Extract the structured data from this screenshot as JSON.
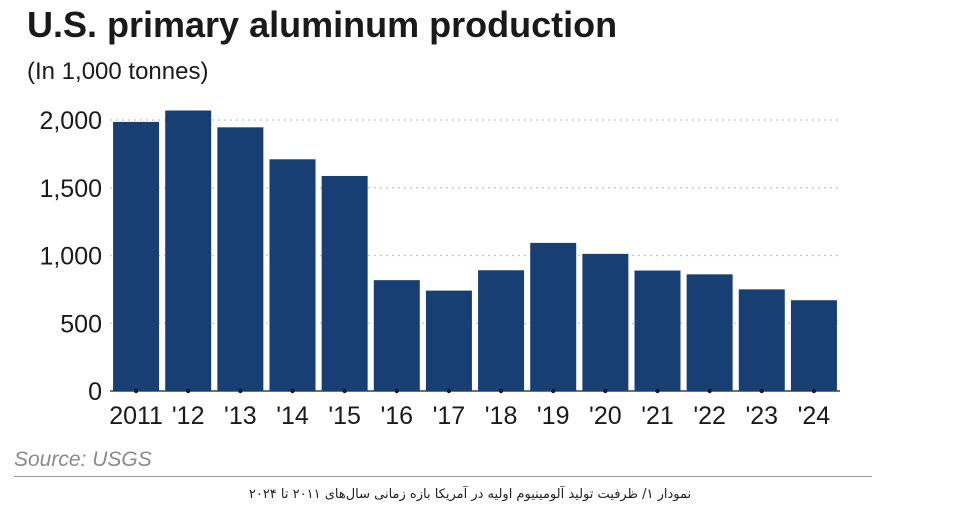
{
  "chart_data": {
    "type": "bar",
    "title": "U.S. primary aluminum production",
    "subtitle": "(In 1,000 tonnes)",
    "categories": [
      "2011",
      "'12",
      "'13",
      "'14",
      "'15",
      "'16",
      "'17",
      "'18",
      "'19",
      "'20",
      "'21",
      "'22",
      "'23",
      "'24"
    ],
    "values": [
      1986,
      2070,
      1946,
      1710,
      1587,
      818,
      741,
      891,
      1093,
      1012,
      889,
      861,
      750,
      670
    ],
    "ylim": [
      0,
      2100
    ],
    "yticks": [
      0,
      500,
      1000,
      1500,
      2000
    ],
    "ytick_labels": [
      "0",
      "500",
      "1,000",
      "1,500",
      "2,000"
    ],
    "grid": true,
    "bar_color": "#173f73",
    "grid_color": "#c4c4c4",
    "source": "Source: USGS"
  },
  "caption": "نمودار ۱/ ظرفیت تولید آلومینیوم اولیه در آمریکا بازه زمانی سال‌های ۲۰۱۱ تا ۲۰۲۴"
}
